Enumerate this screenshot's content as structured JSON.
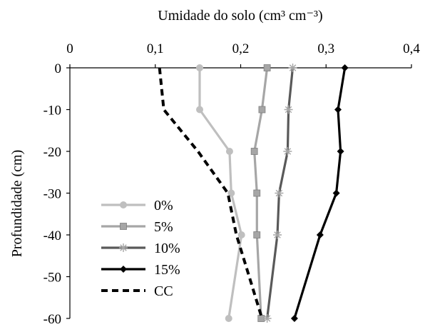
{
  "chart_data": {
    "type": "line",
    "orientation": "x-value-y-depth",
    "title": "",
    "xlabel": "Umidade do solo (cm³ cm⁻³)",
    "ylabel": "Profundidade (cm)",
    "xlim": [
      0,
      0.4
    ],
    "ylim": [
      -60,
      0
    ],
    "x_axis_position": "top",
    "x_ticks": [
      0,
      0.1,
      0.2,
      0.3,
      0.4
    ],
    "x_tick_labels": [
      "0",
      "0,1",
      "0,2",
      "0,3",
      "0,4"
    ],
    "y_ticks": [
      0,
      -10,
      -20,
      -30,
      -40,
      -50,
      -60
    ],
    "y_tick_labels": [
      "0",
      "-10",
      "-20",
      "-30",
      "-40",
      "-50",
      "-60"
    ],
    "grid": false,
    "legend_position": "bottom-left",
    "series": [
      {
        "name": "0%",
        "color": "#bfbfbf",
        "marker": "circle",
        "line_style": "solid",
        "points": [
          {
            "x": 0.152,
            "y": 0
          },
          {
            "x": 0.152,
            "y": -10
          },
          {
            "x": 0.187,
            "y": -20
          },
          {
            "x": 0.189,
            "y": -30
          },
          {
            "x": 0.201,
            "y": -40
          },
          {
            "x": 0.186,
            "y": -60
          }
        ]
      },
      {
        "name": "5%",
        "color": "#a6a6a6",
        "marker": "square",
        "line_style": "solid",
        "points": [
          {
            "x": 0.231,
            "y": 0
          },
          {
            "x": 0.225,
            "y": -10
          },
          {
            "x": 0.216,
            "y": -20
          },
          {
            "x": 0.219,
            "y": -30
          },
          {
            "x": 0.219,
            "y": -40
          },
          {
            "x": 0.224,
            "y": -60
          }
        ]
      },
      {
        "name": "10%",
        "color": "#595959",
        "marker": "star",
        "line_style": "solid",
        "points": [
          {
            "x": 0.261,
            "y": 0
          },
          {
            "x": 0.256,
            "y": -10
          },
          {
            "x": 0.255,
            "y": -20
          },
          {
            "x": 0.245,
            "y": -30
          },
          {
            "x": 0.243,
            "y": -40
          },
          {
            "x": 0.231,
            "y": -60
          }
        ]
      },
      {
        "name": "15%",
        "color": "#000000",
        "marker": "diamond",
        "line_style": "solid",
        "points": [
          {
            "x": 0.322,
            "y": 0
          },
          {
            "x": 0.314,
            "y": -10
          },
          {
            "x": 0.317,
            "y": -20
          },
          {
            "x": 0.312,
            "y": -30
          },
          {
            "x": 0.293,
            "y": -40
          },
          {
            "x": 0.263,
            "y": -60
          }
        ]
      },
      {
        "name": "CC",
        "color": "#000000",
        "marker": "none",
        "line_style": "dashed",
        "points": [
          {
            "x": 0.105,
            "y": 0
          },
          {
            "x": 0.11,
            "y": -10
          },
          {
            "x": 0.15,
            "y": -20
          },
          {
            "x": 0.185,
            "y": -30
          },
          {
            "x": 0.195,
            "y": -40
          },
          {
            "x": 0.21,
            "y": -50
          },
          {
            "x": 0.225,
            "y": -60
          }
        ]
      }
    ]
  }
}
